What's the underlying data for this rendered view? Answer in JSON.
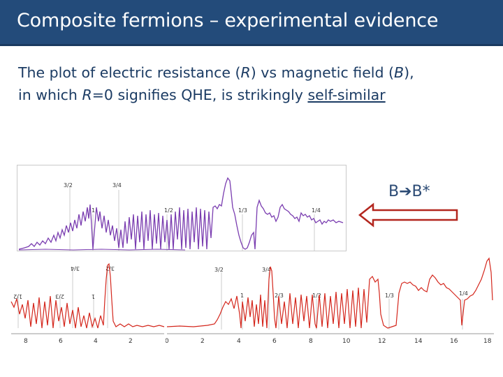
{
  "slide": {
    "title": "Composite fermions – experimental evidence",
    "body": {
      "line1_part1": "The plot of electric resistance (",
      "line1_R": "R",
      "line1_part2": ") vs magnetic field (",
      "line1_B": "B",
      "line1_part3": "),",
      "line2_part1": "in which ",
      "line2_R": "R",
      "line2_part2": "=0 signifies QHE, is strikingly ",
      "line2_underlined": "self-similar"
    },
    "annotation": {
      "left": "B",
      "arrow": "➔",
      "right": "B*"
    }
  },
  "colors": {
    "title_bg": "#234b7a",
    "body_text": "#1b3b63",
    "purple_trace": "#7a3db0",
    "red_trace": "#d4261c",
    "arrow_outline": "#b3261e"
  },
  "plots": {
    "top": {
      "labels": [
        "3/2",
        "3/4",
        "1",
        "1/2",
        "1/3",
        "1/4"
      ]
    },
    "bottom_left": {
      "labels": [
        "3/4",
        "3/2",
        "1/2",
        "2/3",
        "1"
      ]
    },
    "bottom_right": {
      "labels": [
        "3/2",
        "3/4",
        "1",
        "2/3",
        "1/2",
        "1/3",
        "1/4"
      ],
      "ticks": [
        "0",
        "2",
        "4",
        "6",
        "8",
        "10",
        "12",
        "14",
        "16",
        "18"
      ]
    },
    "bottom_left_ticks": [
      "8",
      "6",
      "4",
      "2"
    ]
  }
}
